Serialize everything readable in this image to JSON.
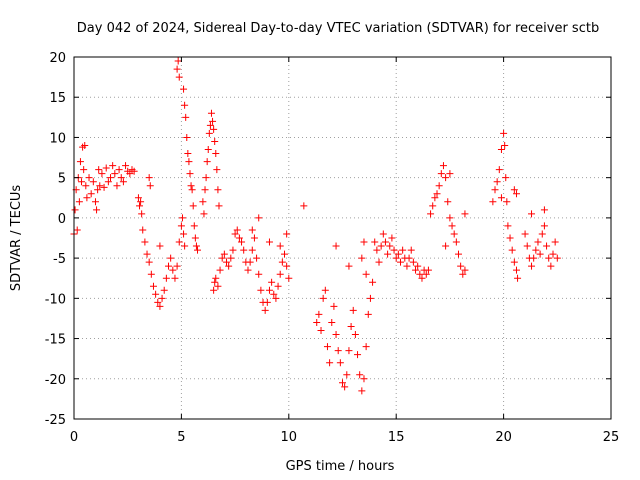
{
  "colors": {
    "series": "#ff0000",
    "grid": "#a0a0a0",
    "axis": "#000000",
    "background": "#ffffff"
  },
  "chart_data": {
    "type": "scatter",
    "title": "Day 042 of 2024, Sidereal Day-to-day VTEC variation (SDTVAR) for receiver sctb",
    "xlabel": "GPS time / hours",
    "ylabel": "SDTVAR / TECUs",
    "xlim": [
      0,
      25
    ],
    "ylim": [
      -25,
      20
    ],
    "xticks": [
      0,
      5,
      10,
      15,
      20,
      25
    ],
    "yticks": [
      -25,
      -20,
      -15,
      -10,
      -5,
      0,
      5,
      10,
      15,
      20
    ],
    "grid": true,
    "marker": "plus",
    "series": [
      {
        "name": "SDTVAR",
        "color": "#ff0000",
        "points": [
          [
            0.0,
            -2.0
          ],
          [
            0.05,
            1.0
          ],
          [
            0.1,
            3.5
          ],
          [
            0.15,
            -1.5
          ],
          [
            0.2,
            5.0
          ],
          [
            0.25,
            2.0
          ],
          [
            0.3,
            7.0
          ],
          [
            0.35,
            4.5
          ],
          [
            0.4,
            8.8
          ],
          [
            0.45,
            6.0
          ],
          [
            0.5,
            9.0
          ],
          [
            0.55,
            4.0
          ],
          [
            0.6,
            2.5
          ],
          [
            0.7,
            5.0
          ],
          [
            0.8,
            3.0
          ],
          [
            0.9,
            4.5
          ],
          [
            1.0,
            2.0
          ],
          [
            1.05,
            1.0
          ],
          [
            1.1,
            3.5
          ],
          [
            1.15,
            6.0
          ],
          [
            1.2,
            4.0
          ],
          [
            1.3,
            5.5
          ],
          [
            1.4,
            3.8
          ],
          [
            1.5,
            6.2
          ],
          [
            1.6,
            4.5
          ],
          [
            1.7,
            5.0
          ],
          [
            1.8,
            6.5
          ],
          [
            1.9,
            5.5
          ],
          [
            2.0,
            4.0
          ],
          [
            2.1,
            6.0
          ],
          [
            2.2,
            5.0
          ],
          [
            2.3,
            4.5
          ],
          [
            2.4,
            6.5
          ],
          [
            2.5,
            5.8
          ],
          [
            2.6,
            5.5
          ],
          [
            2.7,
            6.0
          ],
          [
            2.8,
            5.8
          ],
          [
            3.0,
            2.5
          ],
          [
            3.05,
            1.5
          ],
          [
            3.1,
            2.0
          ],
          [
            3.15,
            0.5
          ],
          [
            3.2,
            -1.5
          ],
          [
            3.3,
            -3.0
          ],
          [
            3.4,
            -4.5
          ],
          [
            3.5,
            -5.5
          ],
          [
            3.6,
            -7.0
          ],
          [
            3.7,
            -8.5
          ],
          [
            3.8,
            -9.5
          ],
          [
            3.9,
            -10.5
          ],
          [
            4.0,
            -11.0
          ],
          [
            4.1,
            -10.0
          ],
          [
            4.2,
            -9.0
          ],
          [
            4.3,
            -7.5
          ],
          [
            4.4,
            -6.0
          ],
          [
            4.5,
            -5.0
          ],
          [
            4.6,
            -6.5
          ],
          [
            4.7,
            -7.5
          ],
          [
            4.8,
            -6.0
          ],
          [
            4.9,
            -3.0
          ],
          [
            5.0,
            -1.0
          ],
          [
            5.05,
            0.0
          ],
          [
            5.1,
            -2.0
          ],
          [
            5.15,
            -3.5
          ],
          [
            3.5,
            5.0
          ],
          [
            3.55,
            4.0
          ],
          [
            4.0,
            -3.5
          ],
          [
            4.8,
            18.5
          ],
          [
            4.85,
            19.5
          ],
          [
            4.9,
            17.5
          ],
          [
            5.1,
            16.0
          ],
          [
            5.15,
            14.0
          ],
          [
            5.2,
            12.5
          ],
          [
            5.25,
            10.0
          ],
          [
            5.3,
            8.0
          ],
          [
            5.35,
            7.0
          ],
          [
            5.4,
            5.5
          ],
          [
            5.45,
            4.0
          ],
          [
            5.5,
            3.5
          ],
          [
            5.55,
            1.5
          ],
          [
            5.6,
            -1.0
          ],
          [
            5.65,
            -2.5
          ],
          [
            5.7,
            -3.5
          ],
          [
            5.75,
            -4.0
          ],
          [
            6.0,
            2.0
          ],
          [
            6.05,
            0.5
          ],
          [
            6.1,
            3.5
          ],
          [
            6.15,
            5.0
          ],
          [
            6.2,
            7.0
          ],
          [
            6.25,
            8.5
          ],
          [
            6.3,
            10.5
          ],
          [
            6.35,
            11.5
          ],
          [
            6.4,
            13.0
          ],
          [
            6.45,
            12.0
          ],
          [
            6.5,
            11.0
          ],
          [
            6.55,
            9.5
          ],
          [
            6.6,
            8.0
          ],
          [
            6.65,
            6.0
          ],
          [
            6.7,
            3.5
          ],
          [
            6.75,
            1.5
          ],
          [
            6.5,
            -9.0
          ],
          [
            6.55,
            -8.0
          ],
          [
            6.6,
            -7.5
          ],
          [
            6.7,
            -8.5
          ],
          [
            6.8,
            -6.5
          ],
          [
            6.9,
            -5.0
          ],
          [
            7.0,
            -4.5
          ],
          [
            7.1,
            -5.5
          ],
          [
            7.2,
            -6.0
          ],
          [
            7.3,
            -5.0
          ],
          [
            7.4,
            -4.0
          ],
          [
            7.5,
            -2.0
          ],
          [
            7.6,
            -1.5
          ],
          [
            7.7,
            -2.5
          ],
          [
            7.8,
            -3.0
          ],
          [
            7.9,
            -4.0
          ],
          [
            8.0,
            -5.5
          ],
          [
            8.1,
            -6.5
          ],
          [
            8.2,
            -5.5
          ],
          [
            8.3,
            -4.0
          ],
          [
            8.4,
            -2.5
          ],
          [
            8.5,
            -5.0
          ],
          [
            8.6,
            -7.0
          ],
          [
            8.7,
            -9.0
          ],
          [
            8.8,
            -10.5
          ],
          [
            8.9,
            -11.5
          ],
          [
            9.0,
            -10.5
          ],
          [
            9.1,
            -9.0
          ],
          [
            9.2,
            -8.0
          ],
          [
            9.3,
            -9.5
          ],
          [
            9.4,
            -10.0
          ],
          [
            9.5,
            -8.5
          ],
          [
            9.6,
            -7.0
          ],
          [
            9.7,
            -5.5
          ],
          [
            9.8,
            -4.5
          ],
          [
            9.9,
            -6.0
          ],
          [
            10.0,
            -7.5
          ],
          [
            8.6,
            0.0
          ],
          [
            8.3,
            -1.5
          ],
          [
            9.1,
            -3.0
          ],
          [
            9.6,
            -3.5
          ],
          [
            9.9,
            -2.0
          ],
          [
            10.7,
            1.5
          ],
          [
            11.3,
            -13.0
          ],
          [
            11.4,
            -12.0
          ],
          [
            11.5,
            -14.0
          ],
          [
            11.6,
            -10.0
          ],
          [
            11.7,
            -9.0
          ],
          [
            11.8,
            -16.0
          ],
          [
            11.9,
            -18.0
          ],
          [
            12.0,
            -13.0
          ],
          [
            12.1,
            -11.0
          ],
          [
            12.2,
            -14.5
          ],
          [
            12.3,
            -16.5
          ],
          [
            12.4,
            -18.0
          ],
          [
            12.5,
            -20.5
          ],
          [
            12.6,
            -21.0
          ],
          [
            12.7,
            -19.5
          ],
          [
            12.8,
            -16.5
          ],
          [
            12.9,
            -13.5
          ],
          [
            13.0,
            -11.5
          ],
          [
            13.1,
            -14.5
          ],
          [
            13.2,
            -17.0
          ],
          [
            13.3,
            -19.5
          ],
          [
            13.4,
            -21.5
          ],
          [
            13.5,
            -20.0
          ],
          [
            13.6,
            -16.0
          ],
          [
            13.7,
            -12.0
          ],
          [
            13.8,
            -10.0
          ],
          [
            13.9,
            -8.0
          ],
          [
            12.2,
            -3.5
          ],
          [
            12.8,
            -6.0
          ],
          [
            13.4,
            -5.0
          ],
          [
            13.5,
            -3.0
          ],
          [
            13.6,
            -7.0
          ],
          [
            14.0,
            -3.0
          ],
          [
            14.1,
            -4.0
          ],
          [
            14.2,
            -5.5
          ],
          [
            14.3,
            -3.5
          ],
          [
            14.4,
            -2.0
          ],
          [
            14.5,
            -3.0
          ],
          [
            14.6,
            -4.5
          ],
          [
            14.7,
            -3.5
          ],
          [
            14.8,
            -2.5
          ],
          [
            14.9,
            -4.0
          ],
          [
            15.0,
            -5.0
          ],
          [
            15.1,
            -4.5
          ],
          [
            15.2,
            -5.5
          ],
          [
            15.3,
            -4.0
          ],
          [
            15.4,
            -5.0
          ],
          [
            15.5,
            -6.0
          ],
          [
            15.6,
            -5.0
          ],
          [
            15.7,
            -4.0
          ],
          [
            15.8,
            -5.5
          ],
          [
            15.9,
            -6.5
          ],
          [
            16.0,
            -6.0
          ],
          [
            16.1,
            -7.0
          ],
          [
            16.2,
            -7.5
          ],
          [
            16.3,
            -6.5
          ],
          [
            16.4,
            -7.0
          ],
          [
            16.5,
            -6.5
          ],
          [
            16.6,
            0.5
          ],
          [
            16.7,
            1.5
          ],
          [
            16.8,
            2.5
          ],
          [
            16.9,
            3.0
          ],
          [
            17.0,
            4.0
          ],
          [
            17.1,
            5.5
          ],
          [
            17.2,
            6.5
          ],
          [
            17.3,
            5.0
          ],
          [
            17.4,
            2.0
          ],
          [
            17.5,
            0.0
          ],
          [
            17.6,
            -1.0
          ],
          [
            17.7,
            -2.0
          ],
          [
            17.8,
            -3.0
          ],
          [
            17.9,
            -4.5
          ],
          [
            18.0,
            -6.0
          ],
          [
            18.1,
            -7.0
          ],
          [
            18.2,
            -6.5
          ],
          [
            17.5,
            5.5
          ],
          [
            17.3,
            -3.5
          ],
          [
            18.2,
            0.5
          ],
          [
            19.5,
            2.0
          ],
          [
            19.6,
            3.5
          ],
          [
            19.7,
            4.5
          ],
          [
            19.8,
            6.0
          ],
          [
            19.9,
            8.5
          ],
          [
            20.0,
            10.5
          ],
          [
            20.05,
            9.0
          ],
          [
            20.1,
            5.0
          ],
          [
            20.15,
            2.0
          ],
          [
            20.2,
            -1.0
          ],
          [
            20.3,
            -2.5
          ],
          [
            20.4,
            -4.0
          ],
          [
            20.5,
            -5.5
          ],
          [
            20.6,
            -6.5
          ],
          [
            20.65,
            -7.5
          ],
          [
            20.5,
            3.5
          ],
          [
            20.6,
            3.0
          ],
          [
            19.9,
            2.5
          ],
          [
            21.0,
            -2.0
          ],
          [
            21.1,
            -3.5
          ],
          [
            21.2,
            -5.0
          ],
          [
            21.3,
            -6.0
          ],
          [
            21.4,
            -5.0
          ],
          [
            21.5,
            -4.0
          ],
          [
            21.6,
            -3.0
          ],
          [
            21.7,
            -4.5
          ],
          [
            21.8,
            -2.0
          ],
          [
            21.9,
            -1.0
          ],
          [
            22.0,
            -3.5
          ],
          [
            22.1,
            -5.0
          ],
          [
            22.2,
            -6.0
          ],
          [
            22.3,
            -4.5
          ],
          [
            22.4,
            -3.0
          ],
          [
            22.5,
            -5.0
          ],
          [
            21.3,
            0.5
          ],
          [
            21.9,
            1.0
          ]
        ]
      }
    ]
  }
}
